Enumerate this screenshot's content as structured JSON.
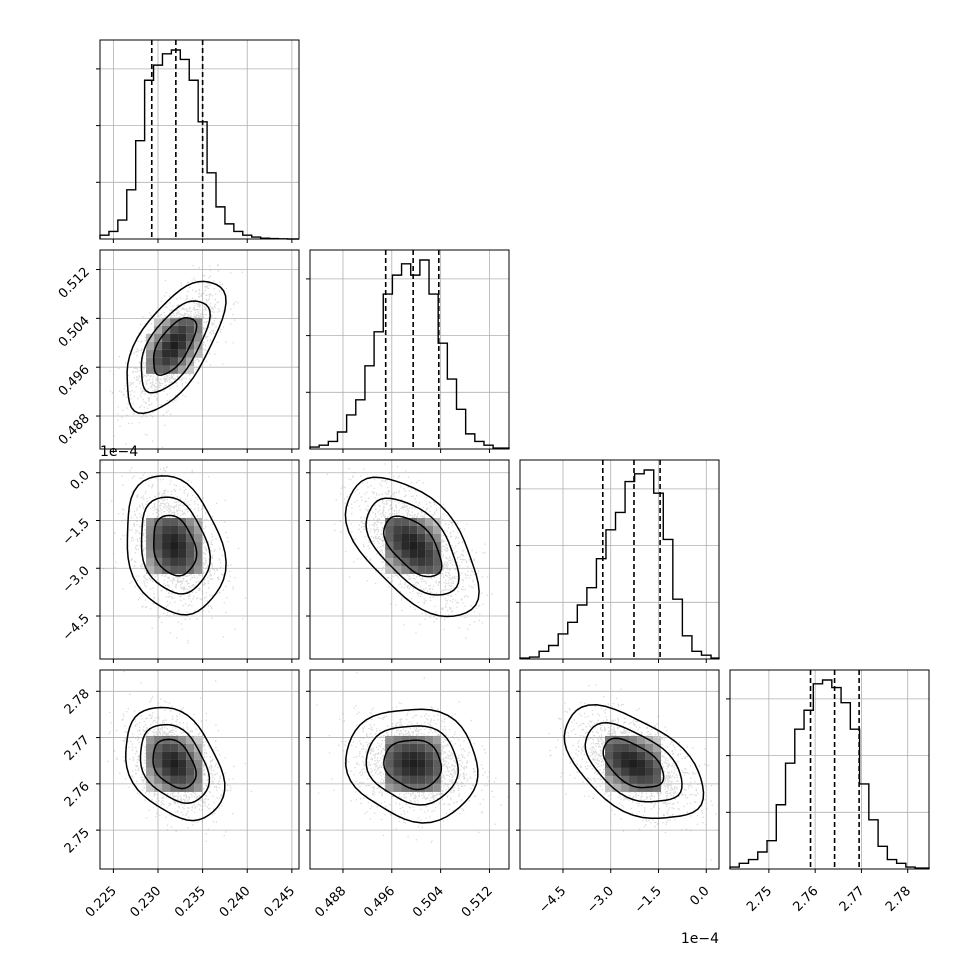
{
  "chart_data": {
    "type": "corner",
    "grid": true,
    "colors": {
      "ink": "#000000",
      "grid": "#b0b0b0",
      "scatter": "#9a9a9a"
    },
    "parameters": [
      {
        "range": [
          0.2235,
          0.2458
        ],
        "ticks": [
          0.225,
          0.23,
          0.235,
          0.24,
          0.245
        ],
        "tick_labels": [
          "0.225",
          "0.230",
          "0.235",
          "0.240",
          "0.245"
        ],
        "scale": 1,
        "offset_label": "",
        "mean": 0.2318,
        "sd": 0.0024,
        "quantiles": [
          0.2293,
          0.232,
          0.235
        ],
        "histogram": {
          "bins": [
            0.2235,
            0.2245,
            0.2255,
            0.2265,
            0.2275,
            0.2285,
            0.2295,
            0.2305,
            0.2315,
            0.2325,
            0.2335,
            0.2345,
            0.2355,
            0.2365,
            0.2375,
            0.2385,
            0.2395,
            0.2405,
            0.2415,
            0.2425,
            0.2435,
            0.2445,
            0.2458
          ],
          "counts": [
            0.02,
            0.04,
            0.1,
            0.26,
            0.52,
            0.84,
            0.92,
            0.98,
            1.0,
            0.95,
            0.84,
            0.62,
            0.35,
            0.17,
            0.08,
            0.04,
            0.02,
            0.01,
            0.004,
            0.002,
            0.001,
            0.0
          ]
        }
      },
      {
        "range": [
          0.4826,
          0.5152
        ],
        "ticks": [
          0.488,
          0.496,
          0.504,
          0.512
        ],
        "tick_labels": [
          "0.488",
          "0.496",
          "0.504",
          "0.512"
        ],
        "scale": 1,
        "offset_label": "",
        "mean": 0.4995,
        "sd": 0.0047,
        "quantiles": [
          0.495,
          0.4995,
          0.5037
        ],
        "histogram": {
          "bins": [
            0.4826,
            0.4841,
            0.4856,
            0.4871,
            0.4886,
            0.4901,
            0.4916,
            0.4931,
            0.4946,
            0.4961,
            0.4976,
            0.4991,
            0.5006,
            0.5021,
            0.5036,
            0.5051,
            0.5066,
            0.5081,
            0.5096,
            0.5111,
            0.5126,
            0.5152
          ],
          "counts": [
            0.01,
            0.02,
            0.04,
            0.09,
            0.18,
            0.26,
            0.44,
            0.62,
            0.82,
            0.92,
            0.98,
            0.92,
            1.0,
            0.82,
            0.56,
            0.37,
            0.21,
            0.08,
            0.04,
            0.02,
            0.005
          ]
        }
      },
      {
        "range": [
          -5.85,
          0.4
        ],
        "ticks": [
          -4.5,
          -3.0,
          -1.5,
          0.0
        ],
        "tick_labels": [
          "−4.5",
          "−3.0",
          "−1.5",
          "0.0"
        ],
        "scale": 0.0001,
        "offset_label": "1e−4",
        "mean": -2.3,
        "sd": 0.95,
        "quantiles": [
          -3.25,
          -2.27,
          -1.45
        ],
        "histogram": {
          "bins": [
            -5.85,
            -5.55,
            -5.25,
            -4.95,
            -4.65,
            -4.35,
            -4.05,
            -3.75,
            -3.45,
            -3.15,
            -2.85,
            -2.55,
            -2.25,
            -1.95,
            -1.65,
            -1.35,
            -1.05,
            -0.75,
            -0.45,
            -0.15,
            0.15,
            0.4
          ],
          "counts": [
            0.005,
            0.01,
            0.04,
            0.07,
            0.13,
            0.19,
            0.28,
            0.37,
            0.52,
            0.67,
            0.76,
            0.92,
            0.96,
            0.98,
            0.86,
            0.62,
            0.31,
            0.12,
            0.04,
            0.02,
            0.005
          ]
        }
      },
      {
        "range": [
          2.7416,
          2.7846
        ],
        "ticks": [
          2.75,
          2.76,
          2.77,
          2.78
        ],
        "tick_labels": [
          "2.75",
          "2.76",
          "2.77",
          "2.78"
        ],
        "scale": 1,
        "offset_label": "",
        "mean": 2.7643,
        "sd": 0.0053,
        "quantiles": [
          2.759,
          2.7642,
          2.7695
        ],
        "histogram": {
          "bins": [
            2.7416,
            2.7436,
            2.7456,
            2.7476,
            2.7496,
            2.7516,
            2.7536,
            2.7556,
            2.7576,
            2.7596,
            2.7616,
            2.7636,
            2.7656,
            2.7676,
            2.7696,
            2.7716,
            2.7736,
            2.7756,
            2.7776,
            2.7796,
            2.7816,
            2.7846
          ],
          "counts": [
            0.01,
            0.03,
            0.05,
            0.09,
            0.15,
            0.34,
            0.56,
            0.74,
            0.84,
            0.98,
            1.0,
            0.96,
            0.88,
            0.74,
            0.45,
            0.26,
            0.12,
            0.05,
            0.03,
            0.01,
            0.005
          ]
        }
      }
    ],
    "correlations": [
      [
        1,
        0.62,
        -0.22,
        -0.33
      ],
      [
        0.62,
        1,
        -0.55,
        -0.1
      ],
      [
        -0.22,
        -0.55,
        1,
        -0.5
      ],
      [
        -0.33,
        -0.1,
        -0.5,
        1
      ]
    ]
  }
}
